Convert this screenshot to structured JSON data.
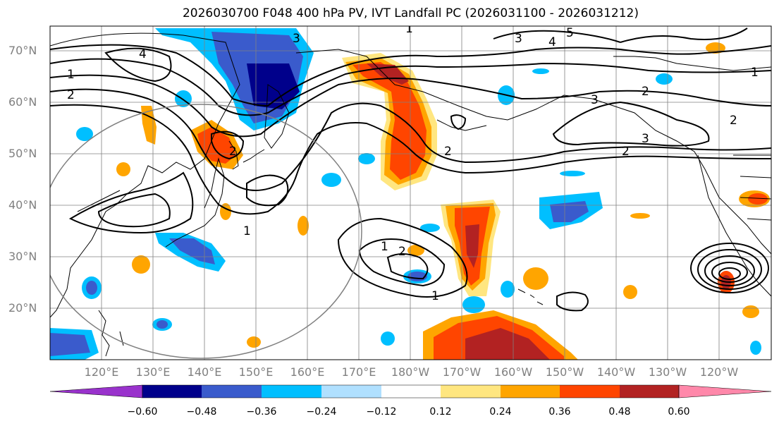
{
  "title": "2026030700 F048 400 hPa PV, IVT Landfall PC (2026031100 - 2026031212)",
  "lat_labels": [
    "70°N",
    "60°N",
    "50°N",
    "40°N",
    "30°N",
    "20°N"
  ],
  "lon_labels": [
    "120°E",
    "130°E",
    "140°E",
    "150°E",
    "160°E",
    "170°E",
    "180°W",
    "170°W",
    "160°W",
    "150°W",
    "140°W",
    "130°W",
    "120°W"
  ],
  "colorbar": {
    "labels": [
      "−0.60",
      "−0.48",
      "−0.36",
      "−0.24",
      "−0.12",
      "0.12",
      "0.24",
      "0.36",
      "0.48",
      "0.60"
    ],
    "colors": [
      "#9932cc",
      "#00008b",
      "#3a5bcc",
      "#00bfff",
      "#b0e0ff",
      "#ffffff",
      "#ffe680",
      "#ffa500",
      "#ff4500",
      "#b22222",
      "#ff88aa"
    ]
  },
  "contour_labels": [
    "1",
    "2",
    "3",
    "4",
    "5"
  ],
  "colors": {
    "coast": "#000000",
    "grid": "#808080",
    "contour": "#000000"
  }
}
